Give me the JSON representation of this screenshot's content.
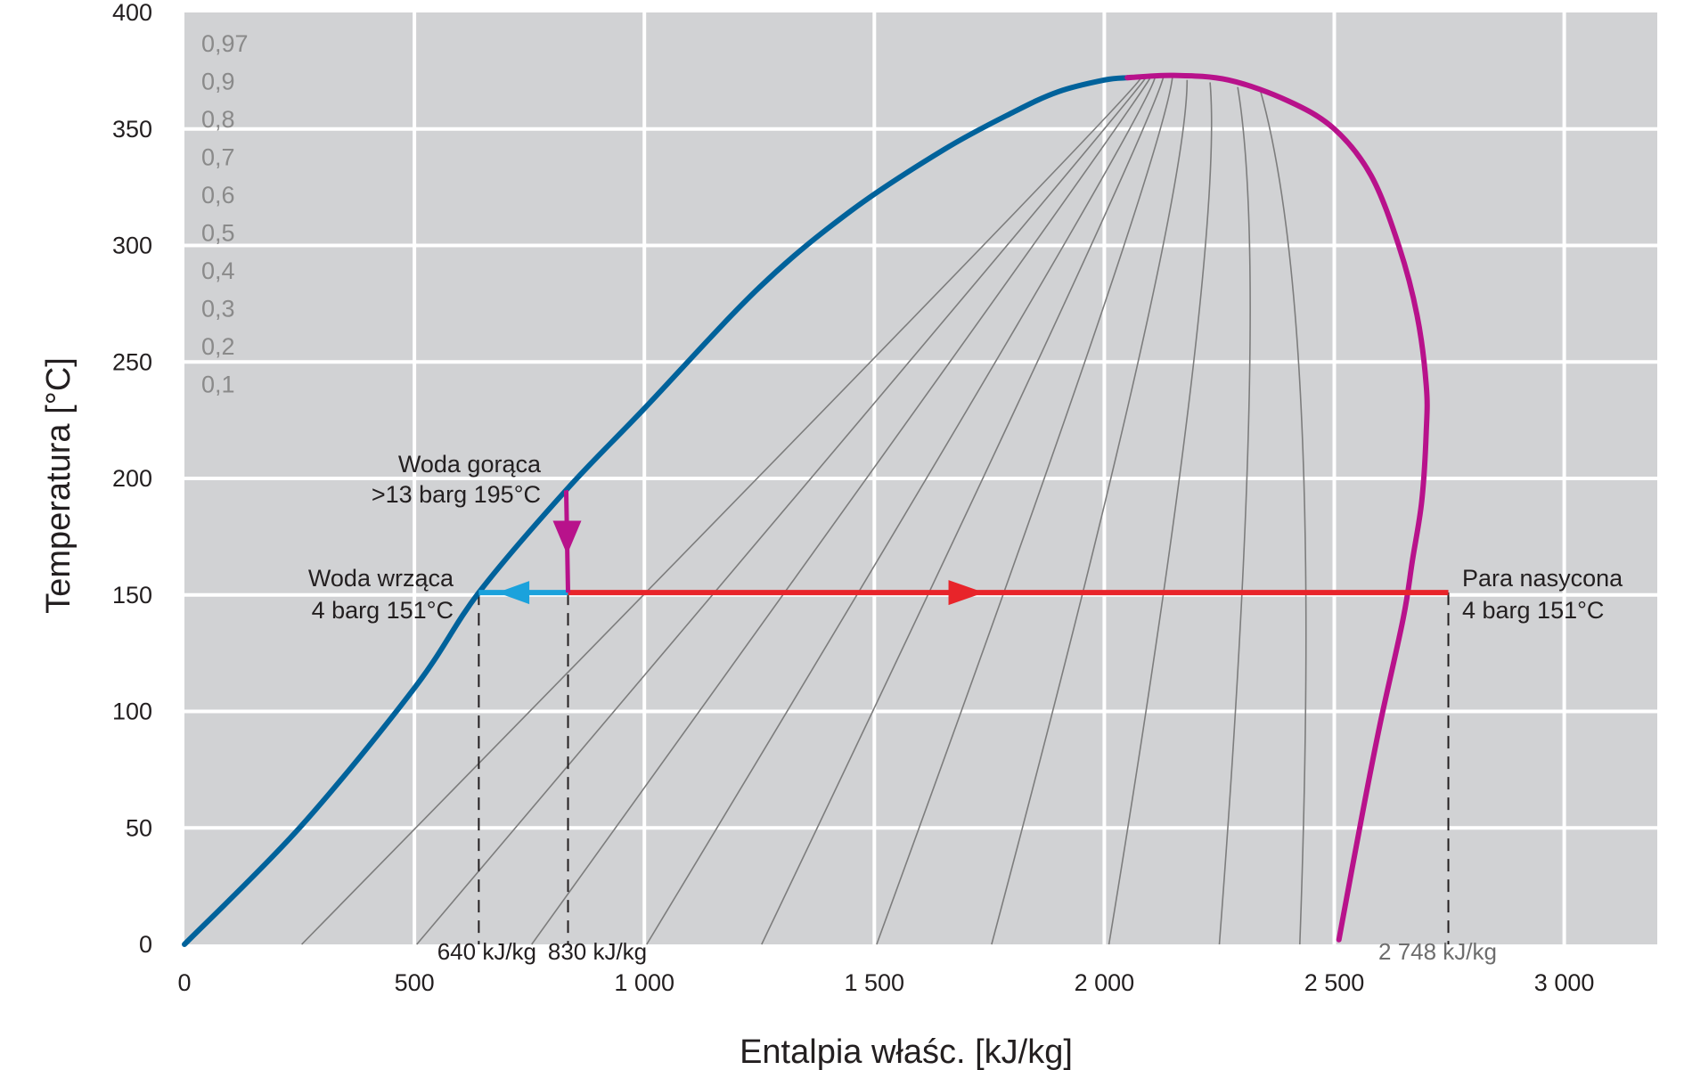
{
  "chart_data": {
    "type": "line",
    "title": "",
    "xlabel": "Entalpia właśc. [kJ/kg]",
    "ylabel": "Temperatura [°C]",
    "xlim": [
      0,
      3200
    ],
    "ylim": [
      0,
      400
    ],
    "x_ticks": [
      {
        "value": 0,
        "label": "0"
      },
      {
        "value": 500,
        "label": "500"
      },
      {
        "value": 1000,
        "label": "1 000"
      },
      {
        "value": 1500,
        "label": "1 500"
      },
      {
        "value": 2000,
        "label": "2 000"
      },
      {
        "value": 2500,
        "label": "2 500"
      },
      {
        "value": 3000,
        "label": "3 000"
      }
    ],
    "y_ticks": [
      {
        "value": 0,
        "label": "0"
      },
      {
        "value": 50,
        "label": "50"
      },
      {
        "value": 100,
        "label": "100"
      },
      {
        "value": 150,
        "label": "150"
      },
      {
        "value": 200,
        "label": "200"
      },
      {
        "value": 250,
        "label": "250"
      },
      {
        "value": 300,
        "label": "300"
      },
      {
        "value": 350,
        "label": "350"
      },
      {
        "value": 400,
        "label": "400"
      }
    ],
    "grid": true,
    "colors": {
      "plot_bg": "#d1d2d4",
      "grid": "#ffffff",
      "liquid_line": "#00629b",
      "vapor_line": "#b8128b",
      "quality_lines": "#7d7d7d",
      "evaporation": "#e8242a",
      "condensation": "#1ba2dc",
      "flash": "#b8128b",
      "quality_label": "#8a8a8a"
    },
    "saturated_liquid": {
      "x": [
        0,
        250,
        500,
        640,
        830,
        1000,
        1250,
        1450,
        1650,
        1800,
        1900,
        2000,
        2050
      ],
      "y": [
        0,
        50,
        110,
        151,
        195,
        230,
        282,
        315,
        341,
        357,
        366,
        371,
        372
      ]
    },
    "saturated_vapor": {
      "x": [
        2050,
        2150,
        2270,
        2400,
        2500,
        2580,
        2640,
        2680,
        2700,
        2700,
        2690,
        2670,
        2650,
        2600,
        2560,
        2510
      ],
      "y": [
        372,
        373,
        371,
        362,
        350,
        330,
        300,
        270,
        240,
        220,
        190,
        165,
        140,
        95,
        55,
        2
      ]
    },
    "quality_series": [
      {
        "label": "0,1",
        "x": [
          255,
          2066,
          2080
        ],
        "y": [
          0,
          365,
          372
        ]
      },
      {
        "label": "0,2",
        "x": [
          505,
          2058,
          2090
        ],
        "y": [
          0,
          362,
          372
        ]
      },
      {
        "label": "0,3",
        "x": [
          755,
          2060,
          2100
        ],
        "y": [
          0,
          358,
          372
        ]
      },
      {
        "label": "0,4",
        "x": [
          1005,
          2085,
          2110
        ],
        "y": [
          0,
          353,
          372
        ]
      },
      {
        "label": "0,5",
        "x": [
          1255,
          2090,
          2128
        ],
        "y": [
          0,
          345,
          372
        ]
      },
      {
        "label": "0,6",
        "x": [
          1505,
          2125,
          2148
        ],
        "y": [
          0,
          335,
          372
        ]
      },
      {
        "label": "0,7",
        "x": [
          1755,
          2180,
          2180
        ],
        "y": [
          0,
          315,
          371
        ]
      },
      {
        "label": "0,8",
        "x": [
          2010,
          2260,
          2230
        ],
        "y": [
          0,
          300,
          370
        ]
      },
      {
        "label": "0,9",
        "x": [
          2250,
          2360,
          2290
        ],
        "y": [
          0,
          285,
          368
        ]
      },
      {
        "label": "0,97",
        "x": [
          2425,
          2475,
          2340
        ],
        "y": [
          0,
          270,
          366
        ]
      }
    ],
    "process_lines": [
      {
        "name": "flash",
        "x": [
          830,
          834
        ],
        "y": [
          195,
          151
        ]
      },
      {
        "name": "evaporation",
        "x": [
          834,
          2748
        ],
        "y": [
          151,
          151
        ]
      },
      {
        "name": "condensation",
        "x": [
          834,
          640
        ],
        "y": [
          151,
          151
        ]
      }
    ],
    "markers": [
      {
        "x": 640,
        "label": "640 kJ/kg"
      },
      {
        "x": 834,
        "label": "830 kJ/kg"
      },
      {
        "x": 2748,
        "label": "2 748 kJ/kg"
      }
    ],
    "annotations": [
      {
        "name": "hot-water",
        "lines": [
          "Woda gorąca",
          ">13 barg 195°C"
        ]
      },
      {
        "name": "boiling-water",
        "lines": [
          "Woda wrząca",
          "4 barg 151°C"
        ]
      },
      {
        "name": "saturated-steam",
        "lines": [
          "Para nasycona",
          "4 barg 151°C"
        ]
      }
    ]
  }
}
